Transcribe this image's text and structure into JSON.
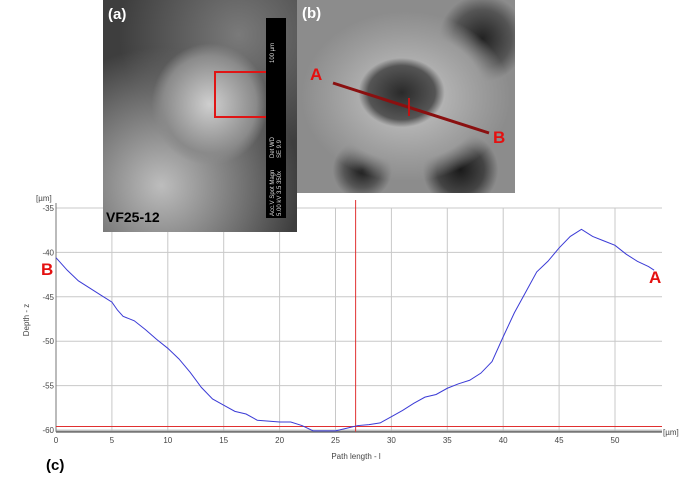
{
  "panels": {
    "a": "(a)",
    "b": "(b)",
    "c": "(c)"
  },
  "sample_label": "VF25-12",
  "scalebar": {
    "length": "100 µm",
    "info1": "Det WD",
    "info2": "SE 9.9",
    "info3": "Acc.V Spot Magn",
    "info4": "5.00 kV 3.5 350x"
  },
  "markers": {
    "a": "A",
    "b": "B"
  },
  "colors": {
    "profile": "#3b3bd6",
    "cursor": "#e03030",
    "marker": "#e41010",
    "grid": "#c8c8c8"
  },
  "chart_data": {
    "type": "line",
    "xlabel": "Path length - l",
    "ylabel": "Depth - z",
    "x_unit": "[µm]",
    "y_unit": "[µm]",
    "xlim": [
      0,
      54.2
    ],
    "ylim": [
      -60.2,
      -35
    ],
    "xticks": [
      0,
      5,
      10,
      15,
      20,
      25,
      30,
      35,
      40,
      45,
      50
    ],
    "yticks": [
      -35,
      -40,
      -45,
      -50,
      -55,
      -60
    ],
    "grid": true,
    "cursor_x": 26.8,
    "cursor_y": -59.6,
    "series": [
      {
        "x": [
          0,
          1,
          2,
          3,
          4,
          5,
          5.5,
          6,
          7,
          8,
          9,
          10,
          11,
          12,
          13,
          14,
          15,
          16,
          17,
          18,
          19,
          20,
          21,
          22,
          23,
          24,
          25,
          26,
          27,
          28,
          29,
          30,
          31,
          32,
          33,
          34,
          35,
          36,
          37,
          38,
          39,
          40,
          41,
          42,
          43,
          44,
          45,
          46,
          47,
          48,
          49,
          50,
          51,
          52,
          53,
          53.5
        ],
        "y": [
          -40.6,
          -42,
          -43.2,
          -44,
          -44.8,
          -45.6,
          -46.5,
          -47.2,
          -47.7,
          -48.7,
          -49.8,
          -50.8,
          -52,
          -53.5,
          -55.2,
          -56.5,
          -57.2,
          -57.9,
          -58.2,
          -58.9,
          -59,
          -59.1,
          -59.1,
          -59.5,
          -60.1,
          -60.1,
          -60.1,
          -59.8,
          -59.5,
          -59.4,
          -59.2,
          -58.5,
          -57.8,
          -57,
          -56.3,
          -56,
          -55.3,
          -54.8,
          -54.4,
          -53.6,
          -52.3,
          -49.5,
          -46.8,
          -44.5,
          -42.2,
          -41,
          -39.5,
          -38.2,
          -37.4,
          -38.2,
          -38.7,
          -39.2,
          -40.2,
          -41,
          -41.6,
          -42
        ]
      }
    ]
  }
}
